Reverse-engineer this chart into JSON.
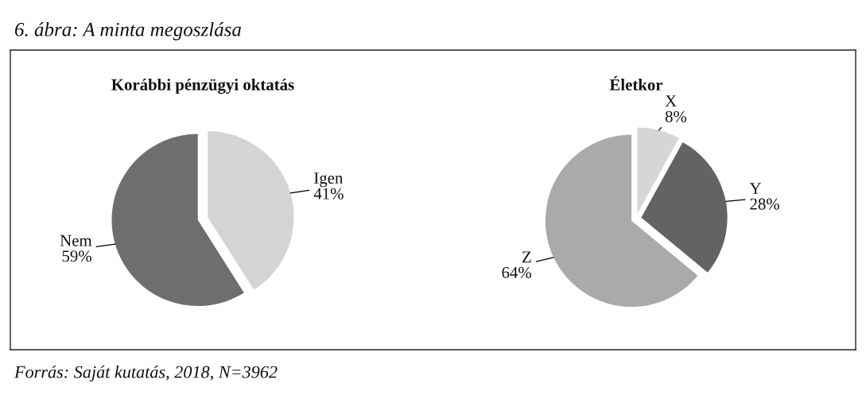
{
  "chart_data": [
    {
      "type": "pie",
      "title": "Korábbi pénzügyi oktatás",
      "categories": [
        "Igen",
        "Nem"
      ],
      "values": [
        41,
        59
      ],
      "value_labels": [
        "41%",
        "59%"
      ],
      "colors": [
        "#d4d4d4",
        "#6e6e6e"
      ],
      "annotations": [
        "6. ábra: A minta megoszlása",
        "Forrás: Saját kutatás, 2018, N=3962"
      ]
    },
    {
      "type": "pie",
      "title": "Életkor",
      "categories": [
        "X",
        "Y",
        "Z"
      ],
      "values": [
        8,
        28,
        64
      ],
      "value_labels": [
        "8%",
        "28%",
        "64%"
      ],
      "colors": [
        "#d6d6d6",
        "#636363",
        "#aaaaaa"
      ]
    }
  ]
}
